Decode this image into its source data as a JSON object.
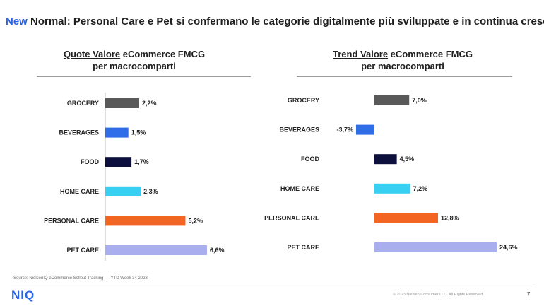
{
  "slide": {
    "title_accent": "New",
    "title_rest": " Normal: Personal Care e Pet si confermano le categorie digitalmente più sviluppate e in continua crescita",
    "source": "Source: NielsenIQ eCommerce Sellout Tracking - – YTD Week 34 2023",
    "logo": "NIQ",
    "copyright": "© 2023 Nielsen Consumer LLC. All Rights Reserved.",
    "page_number": "7"
  },
  "colors": {
    "accent": "#2a64e6",
    "grocery": "#595959",
    "beverages": "#2f6ee8",
    "food": "#0d0f3d",
    "home_care": "#37d0f2",
    "personal_care": "#f26522",
    "pet_care": "#a9aeee"
  },
  "chart_data": [
    {
      "type": "bar",
      "orientation": "horizontal",
      "title_underlined": "Quote Valore",
      "title_rest": " eCommerce FMCG",
      "title_line2": "per macrocomparti",
      "categories": [
        "GROCERY",
        "BEVERAGES",
        "FOOD",
        "HOME CARE",
        "PERSONAL CARE",
        "PET CARE"
      ],
      "values": [
        2.2,
        1.5,
        1.7,
        2.3,
        5.2,
        6.6
      ],
      "value_labels": [
        "2,2%",
        "1,5%",
        "1,7%",
        "2,3%",
        "5,2%",
        "6,6%"
      ],
      "colors": [
        "#595959",
        "#2f6ee8",
        "#0d0f3d",
        "#37d0f2",
        "#f26522",
        "#a9aeee"
      ],
      "xlim": [
        0,
        6.6
      ],
      "grid": false,
      "axis_line": true
    },
    {
      "type": "bar",
      "orientation": "horizontal",
      "title_underlined": "Trend Valore",
      "title_rest": " eCommerce FMCG",
      "title_line2": "per macrocomparti",
      "categories": [
        "GROCERY",
        "BEVERAGES",
        "FOOD",
        "HOME CARE",
        "PERSONAL CARE",
        "PET CARE"
      ],
      "values": [
        7.0,
        -3.7,
        4.5,
        7.2,
        12.8,
        24.6
      ],
      "value_labels": [
        "7,0%",
        "-3,7%",
        "4,5%",
        "7,2%",
        "12,8%",
        "24,6%"
      ],
      "colors": [
        "#595959",
        "#2f6ee8",
        "#0d0f3d",
        "#37d0f2",
        "#f26522",
        "#a9aeee"
      ],
      "xlim": [
        -3.7,
        24.6
      ],
      "grid": false,
      "axis_line": false
    }
  ]
}
